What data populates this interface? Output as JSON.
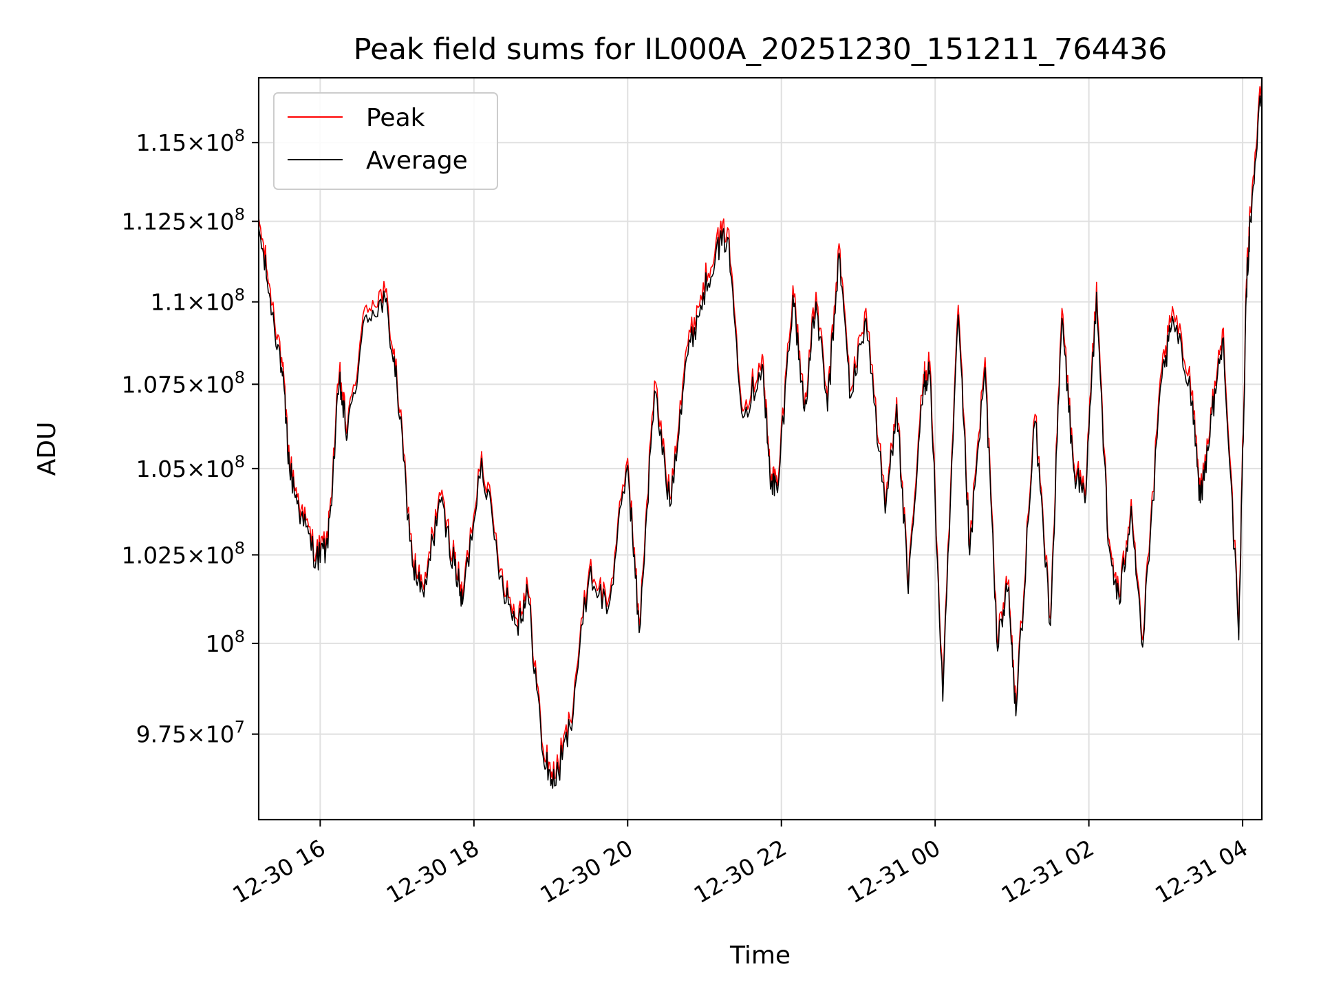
{
  "chart_data": {
    "type": "line",
    "title": "Peak field sums for IL000A_20251230_151211_764436",
    "xlabel": "Time",
    "ylabel": "ADU",
    "y_scale": "log",
    "xlim_hours": [
      15.2,
      28.25
    ],
    "ylim": [
      95200000,
      117100000
    ],
    "grid": true,
    "legend_position": "upper-left",
    "x_ticks": [
      {
        "value": 16,
        "label": "12-30 16"
      },
      {
        "value": 18,
        "label": "12-30 18"
      },
      {
        "value": 20,
        "label": "12-30 20"
      },
      {
        "value": 22,
        "label": "12-30 22"
      },
      {
        "value": 24,
        "label": "12-31 00"
      },
      {
        "value": 26,
        "label": "12-31 02"
      },
      {
        "value": 28,
        "label": "12-31 04"
      }
    ],
    "y_ticks": [
      {
        "value": 97500000,
        "mantissa": "9.75",
        "exponent": "7"
      },
      {
        "value": 100000000,
        "mantissa": "",
        "exponent": "8"
      },
      {
        "value": 102500000,
        "mantissa": "1.025",
        "exponent": "8"
      },
      {
        "value": 105000000,
        "mantissa": "1.05",
        "exponent": "8"
      },
      {
        "value": 107500000,
        "mantissa": "1.075",
        "exponent": "8"
      },
      {
        "value": 110000000,
        "mantissa": "1.1",
        "exponent": "8"
      },
      {
        "value": 112500000,
        "mantissa": "1.125",
        "exponent": "8"
      },
      {
        "value": 115000000,
        "mantissa": "1.15",
        "exponent": "8"
      }
    ],
    "times_label": "hours since 12-30 00:00",
    "times": [
      15.2,
      15.35,
      15.5,
      15.6,
      15.75,
      15.95,
      16.1,
      16.25,
      16.35,
      16.6,
      16.85,
      17.0,
      17.2,
      17.35,
      17.55,
      17.75,
      17.85,
      18.1,
      18.35,
      18.55,
      18.7,
      18.9,
      19.05,
      19.25,
      19.5,
      19.75,
      20.0,
      20.15,
      20.35,
      20.55,
      20.75,
      20.95,
      21.15,
      21.3,
      21.5,
      21.75,
      21.85,
      21.95,
      22.15,
      22.3,
      22.45,
      22.6,
      22.75,
      22.9,
      23.1,
      23.35,
      23.5,
      23.65,
      23.85,
      23.93,
      24.1,
      24.3,
      24.45,
      24.65,
      24.8,
      24.95,
      25.05,
      25.3,
      25.5,
      25.65,
      25.8,
      25.95,
      26.1,
      26.25,
      26.4,
      26.55,
      26.7,
      26.95,
      27.1,
      27.35,
      27.45,
      27.6,
      27.75,
      27.95,
      28.05,
      28.1,
      28.25
    ],
    "series": [
      {
        "name": "Peak",
        "color": "#ff0000",
        "values": [
          112600000,
          110400000,
          108300000,
          105200000,
          103800000,
          102600000,
          102900000,
          107900000,
          106100000,
          109900000,
          110300000,
          107600000,
          102400000,
          101500000,
          104300000,
          102400000,
          101300000,
          105500000,
          102100000,
          100700000,
          101600000,
          97100000,
          96300000,
          97900000,
          102100000,
          101200000,
          105300000,
          100500000,
          107600000,
          104100000,
          108400000,
          110200000,
          111900000,
          112300000,
          106700000,
          108400000,
          105000000,
          104500000,
          110500000,
          106900000,
          110300000,
          106900000,
          111800000,
          107300000,
          109800000,
          103900000,
          107100000,
          101600000,
          107800000,
          108200000,
          98600000,
          109900000,
          102700000,
          108300000,
          100300000,
          101700000,
          98200000,
          106600000,
          100700000,
          109800000,
          105200000,
          104200000,
          110600000,
          103000000,
          101300000,
          104100000,
          100100000,
          108000000,
          109700000,
          107300000,
          104200000,
          106800000,
          109200000,
          100300000,
          110700000,
          112800000,
          117100000
        ]
      },
      {
        "name": "Average",
        "color": "#000000",
        "values": [
          112300000,
          110100000,
          108000000,
          105000000,
          103600000,
          102400000,
          102700000,
          107600000,
          105900000,
          109600000,
          110000000,
          107400000,
          102200000,
          101300000,
          104100000,
          102200000,
          101100000,
          105300000,
          101900000,
          100500000,
          101400000,
          96900000,
          96100000,
          97700000,
          101900000,
          101000000,
          105100000,
          100300000,
          107300000,
          103900000,
          108100000,
          109900000,
          111600000,
          112000000,
          106500000,
          108100000,
          104800000,
          104300000,
          110200000,
          106700000,
          110000000,
          106700000,
          111500000,
          107100000,
          109500000,
          103700000,
          106900000,
          101400000,
          107500000,
          107900000,
          98400000,
          109600000,
          102500000,
          108000000,
          100100000,
          101500000,
          98000000,
          106400000,
          100500000,
          109500000,
          105000000,
          104000000,
          110300000,
          102800000,
          101100000,
          103900000,
          99900000,
          107700000,
          109400000,
          107000000,
          104000000,
          106600000,
          108900000,
          100100000,
          110400000,
          112500000,
          116800000
        ]
      }
    ]
  }
}
